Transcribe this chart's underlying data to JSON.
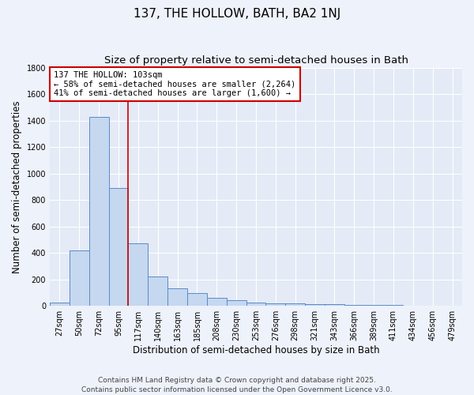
{
  "title": "137, THE HOLLOW, BATH, BA2 1NJ",
  "subtitle": "Size of property relative to semi-detached houses in Bath",
  "xlabel": "Distribution of semi-detached houses by size in Bath",
  "ylabel": "Number of semi-detached properties",
  "categories": [
    "27sqm",
    "50sqm",
    "72sqm",
    "95sqm",
    "117sqm",
    "140sqm",
    "163sqm",
    "185sqm",
    "208sqm",
    "230sqm",
    "253sqm",
    "276sqm",
    "298sqm",
    "321sqm",
    "343sqm",
    "366sqm",
    "389sqm",
    "411sqm",
    "434sqm",
    "456sqm",
    "479sqm"
  ],
  "values": [
    28,
    420,
    1430,
    890,
    470,
    220,
    130,
    95,
    60,
    45,
    28,
    22,
    18,
    14,
    12,
    10,
    10,
    10,
    0,
    0,
    0
  ],
  "bar_color": "#c5d8f0",
  "bar_edge_color": "#5b8ac7",
  "vline_color": "#cc0000",
  "box_edge_color": "#cc0000",
  "ylim": [
    0,
    1800
  ],
  "yticks": [
    0,
    200,
    400,
    600,
    800,
    1000,
    1200,
    1400,
    1600,
    1800
  ],
  "background_color": "#eef2fa",
  "plot_bg_color": "#e4eaf6",
  "annotation_title": "137 THE HOLLOW: 103sqm",
  "annotation_line1": "← 58% of semi-detached houses are smaller (2,264)",
  "annotation_line2": "41% of semi-detached houses are larger (1,600) →",
  "footer": "Contains HM Land Registry data © Crown copyright and database right 2025.\nContains public sector information licensed under the Open Government Licence v3.0.",
  "title_fontsize": 11,
  "subtitle_fontsize": 9.5,
  "axis_label_fontsize": 8.5,
  "tick_fontsize": 7,
  "annotation_fontsize": 7.5,
  "footer_fontsize": 6.5,
  "vline_x_index": 3.5
}
